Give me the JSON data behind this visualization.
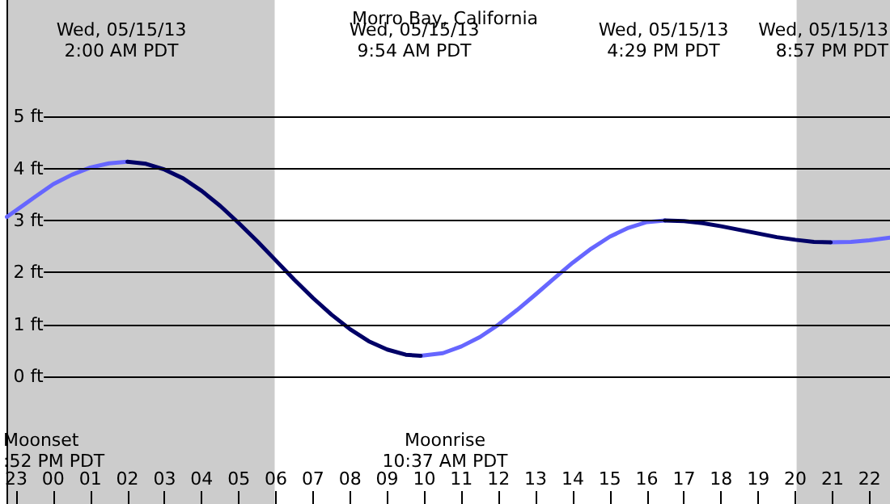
{
  "chart_data": {
    "type": "line",
    "title": "Morro Bay, California",
    "x": [
      "--05-14T22:45",
      "--05-14T23:30",
      "--05-15T00:00",
      "--05-15T00:30",
      "--05-15T01:00",
      "--05-15T01:30",
      "--05-15T02:00",
      "--05-15T02:30",
      "--05-15T03:00",
      "--05-15T03:30",
      "--05-15T04:00",
      "--05-15T04:30",
      "--05-15T05:00",
      "--05-15T05:30",
      "--05-15T06:00",
      "--05-15T06:30",
      "--05-15T07:00",
      "--05-15T07:30",
      "--05-15T08:00",
      "--05-15T08:30",
      "--05-15T09:00",
      "--05-15T09:30",
      "--05-15T09:54",
      "--05-15T10:30",
      "--05-15T11:00",
      "--05-15T11:30",
      "--05-15T12:00",
      "--05-15T12:30",
      "--05-15T13:00",
      "--05-15T13:30",
      "--05-15T14:00",
      "--05-15T14:30",
      "--05-15T15:00",
      "--05-15T15:30",
      "--05-15T16:00",
      "--05-15T16:29",
      "--05-15T17:00",
      "--05-15T17:30",
      "--05-15T18:00",
      "--05-15T18:30",
      "--05-15T19:00",
      "--05-15T19:30",
      "--05-15T20:00",
      "--05-15T20:30",
      "--05-15T20:57",
      "--05-15T21:30",
      "--05-15T22:00",
      "--05-15T22:33"
    ],
    "series": [
      {
        "color": "#6666ff",
        "values": [
          3.07,
          3.45,
          3.7,
          3.88,
          4.02,
          4.1,
          4.13,
          null,
          null,
          null,
          null,
          null,
          null,
          null,
          null,
          null,
          null,
          null,
          null,
          null,
          null,
          null,
          0.4,
          0.45,
          0.58,
          0.76,
          1.0,
          1.28,
          1.58,
          1.89,
          2.19,
          2.46,
          2.69,
          2.86,
          2.97,
          3.0,
          null,
          null,
          null,
          null,
          null,
          null,
          null,
          null,
          2.58,
          2.59,
          2.62,
          2.67
        ]
      },
      {
        "color": "#000066",
        "values": [
          null,
          null,
          null,
          null,
          null,
          null,
          4.13,
          4.09,
          3.98,
          3.81,
          3.57,
          3.28,
          2.95,
          2.6,
          2.23,
          1.86,
          1.51,
          1.19,
          0.91,
          0.68,
          0.52,
          0.42,
          0.4,
          null,
          null,
          null,
          null,
          null,
          null,
          null,
          null,
          null,
          null,
          null,
          null,
          3.0,
          2.99,
          2.95,
          2.89,
          2.82,
          2.75,
          2.68,
          2.63,
          2.59,
          2.58,
          null,
          null,
          null
        ]
      }
    ],
    "xlim": [
      "--05-14T22:45",
      "--05-15T22:33"
    ],
    "xticks": [
      {
        "value": "--05-14T23:00",
        "label": "23"
      },
      {
        "value": "--05-15T00:00",
        "label": "00"
      },
      {
        "value": "--05-15T01:00",
        "label": "01"
      },
      {
        "value": "--05-15T02:00",
        "label": "02"
      },
      {
        "value": "--05-15T03:00",
        "label": "03"
      },
      {
        "value": "--05-15T04:00",
        "label": "04"
      },
      {
        "value": "--05-15T05:00",
        "label": "05"
      },
      {
        "value": "--05-15T06:00",
        "label": "06"
      },
      {
        "value": "--05-15T07:00",
        "label": "07"
      },
      {
        "value": "--05-15T08:00",
        "label": "08"
      },
      {
        "value": "--05-15T09:00",
        "label": "09"
      },
      {
        "value": "--05-15T10:00",
        "label": "10"
      },
      {
        "value": "--05-15T11:00",
        "label": "11"
      },
      {
        "value": "--05-15T12:00",
        "label": "12"
      },
      {
        "value": "--05-15T13:00",
        "label": "13"
      },
      {
        "value": "--05-15T14:00",
        "label": "14"
      },
      {
        "value": "--05-15T15:00",
        "label": "15"
      },
      {
        "value": "--05-15T16:00",
        "label": "16"
      },
      {
        "value": "--05-15T17:00",
        "label": "17"
      },
      {
        "value": "--05-15T18:00",
        "label": "18"
      },
      {
        "value": "--05-15T19:00",
        "label": "19"
      },
      {
        "value": "--05-15T20:00",
        "label": "20"
      },
      {
        "value": "--05-15T21:00",
        "label": "21"
      },
      {
        "value": "--05-15T22:00",
        "label": "22"
      }
    ],
    "ylim": [
      -2.45,
      7.24
    ],
    "yticks": [
      {
        "value": 0,
        "label": "0 ft"
      },
      {
        "value": 1,
        "label": "1 ft"
      },
      {
        "value": 2,
        "label": "2 ft"
      },
      {
        "value": 3,
        "label": "3 ft"
      },
      {
        "value": 4,
        "label": "4 ft"
      },
      {
        "value": 5,
        "label": "5 ft"
      }
    ],
    "bands": [
      {
        "axis": "x",
        "from": "--05-14T22:45",
        "to": "--05-15T05:58",
        "color": "#cccccc"
      },
      {
        "axis": "x",
        "from": "--05-15T20:02",
        "to": "--05-15T22:33",
        "color": "#cccccc"
      }
    ],
    "annotations": [
      "Wed, 05/15/13\n2:00 AM PDT",
      "Wed, 05/15/13\n9:54 AM PDT",
      "Wed, 05/15/13\n4:29 PM PDT",
      "Wed, 05/15/13\n8:57 PM PDT",
      "Moonset\n:52 PM PDT",
      "Moonrise\n10:37 AM PDT"
    ],
    "grid": "y",
    "marker": "none",
    "line_style": "solid"
  }
}
